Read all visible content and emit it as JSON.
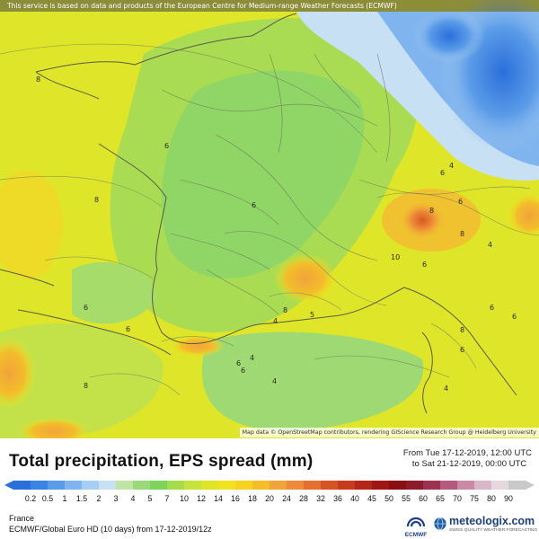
{
  "banner": "This service is based on data and products of the European Centre for Medium-range Weather Forecasts (ECMWF)",
  "map_credit": "Map data © OpenStreetMap contributors, rendering GIScience Research Group @ Heidelberg University",
  "contour_labels": [
    "8",
    "6",
    "8",
    "6",
    "6",
    "6",
    "6",
    "4",
    "8",
    "4",
    "10",
    "6",
    "6",
    "8",
    "6",
    "8",
    "5",
    "4",
    "4",
    "8",
    "6",
    "8",
    "6",
    "4",
    "6",
    "4",
    "6"
  ],
  "title": "Total precipitation, EPS spread (mm)",
  "period": {
    "from": "From Tue 17-12-2019, 12:00 UTC",
    "to": "to Sat 21-12-2019, 00:00 UTC"
  },
  "scale": {
    "ticks": [
      "0.2",
      "0.5",
      "1",
      "1.5",
      "2",
      "3",
      "4",
      "5",
      "7",
      "10",
      "12",
      "14",
      "16",
      "18",
      "20",
      "24",
      "28",
      "32",
      "36",
      "40",
      "45",
      "50",
      "55",
      "60",
      "65",
      "70",
      "75",
      "80",
      "90"
    ],
    "colors": [
      "#2a6fdb",
      "#3a84e6",
      "#5b9ce8",
      "#80b4ee",
      "#a8cdf2",
      "#c8e0f4",
      "#bfe4a6",
      "#9ad97b",
      "#7dd35c",
      "#a6dc49",
      "#c7e23a",
      "#dfe524",
      "#f1e41f",
      "#f6d31e",
      "#f4bd2a",
      "#f0a43a",
      "#ee8a3a",
      "#e56f2e",
      "#d85324",
      "#c83a1d",
      "#b52518",
      "#a01614",
      "#8a0e12",
      "#8e1b2c",
      "#9d3150",
      "#b35a7d",
      "#c98aa6",
      "#dbb6c8",
      "#e6d8de",
      "#c9c9c9"
    ]
  },
  "region": "France",
  "model": "ECMWF/Global Euro HD (10 days)  from  17-12-2019/12z",
  "ecmwf_label": "ECMWF",
  "brand": {
    "name": "meteologix.com",
    "tagline": "SWISS QUALITY WEATHER FORECASTING"
  }
}
